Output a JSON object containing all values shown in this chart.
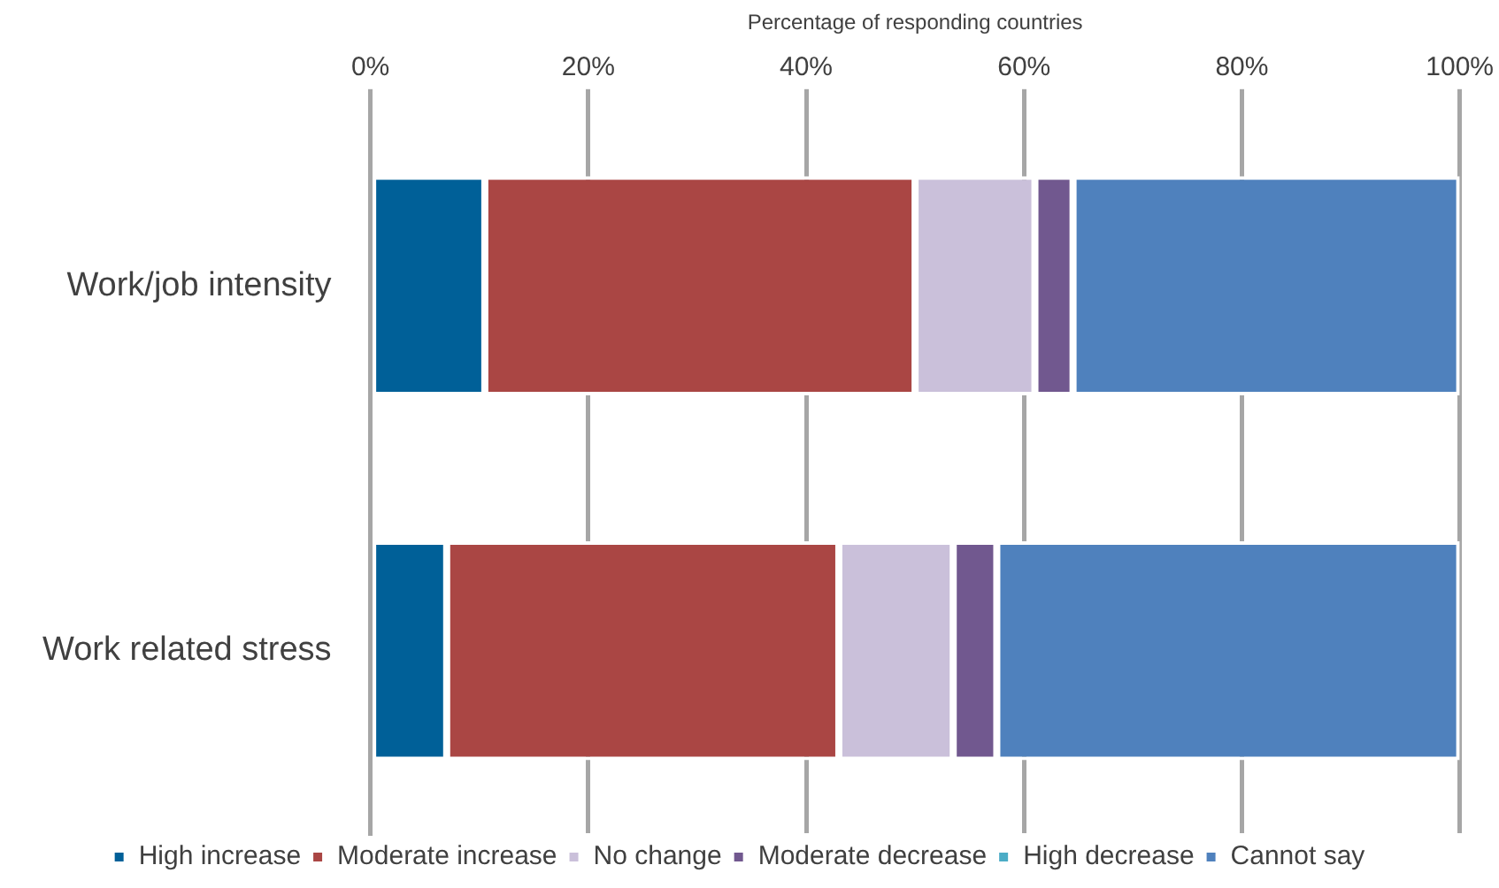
{
  "chart_data": {
    "type": "bar",
    "orientation": "horizontal",
    "stacked": true,
    "xlabel": "Percentage of responding countries",
    "categories": [
      "Work/job intensity",
      "Work related stress"
    ],
    "series": [
      {
        "name": "High increase",
        "color": "#006098",
        "values": [
          10.5,
          7
        ]
      },
      {
        "name": "Moderate increase",
        "color": "#aa4644",
        "values": [
          39.5,
          36
        ]
      },
      {
        "name": "No change",
        "color": "#cac0da",
        "values": [
          11,
          10.5
        ]
      },
      {
        "name": "Moderate decrease",
        "color": "#71588f",
        "values": [
          3.5,
          4
        ]
      },
      {
        "name": "High decrease",
        "color": "#4bacc6",
        "values": [
          0,
          0
        ]
      },
      {
        "name": "Cannot say",
        "color": "#4f81bd",
        "values": [
          35.5,
          42.5
        ]
      }
    ],
    "xlim": [
      0,
      100
    ],
    "xticks": [
      {
        "value": 0,
        "label": "0%"
      },
      {
        "value": 20,
        "label": "20%"
      },
      {
        "value": 40,
        "label": "40%"
      },
      {
        "value": 60,
        "label": "60%"
      },
      {
        "value": 80,
        "label": "80%"
      },
      {
        "value": 100,
        "label": "100%"
      }
    ],
    "grid": "x",
    "legend": "bottom"
  }
}
